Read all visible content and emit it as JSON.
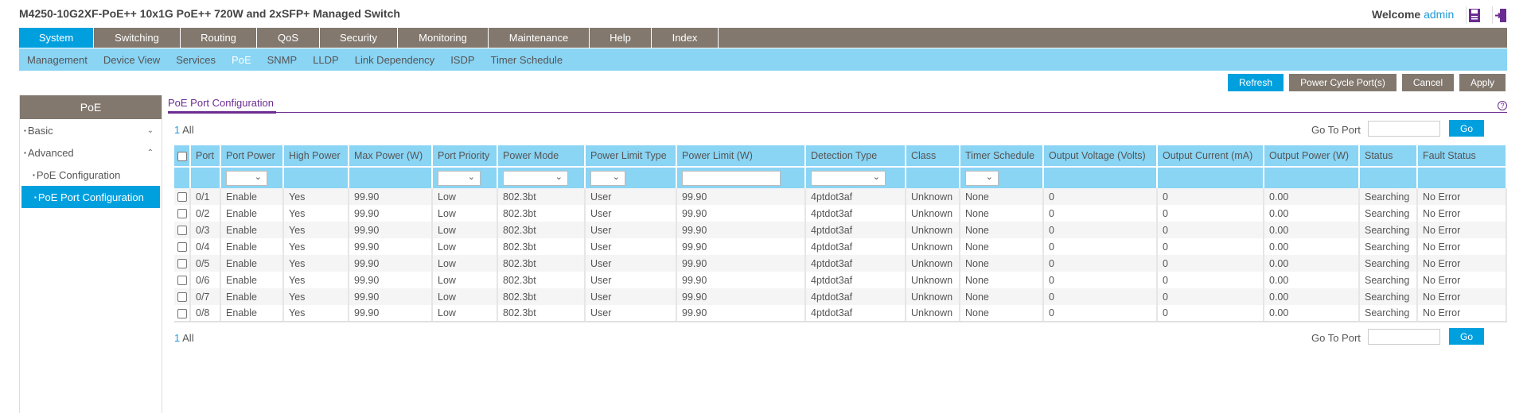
{
  "header": {
    "title": "M4250-10G2XF-PoE++ 10x1G PoE++ 720W and 2xSFP+ Managed Switch",
    "welcome": "Welcome",
    "user": "admin",
    "icons": [
      "save-icon",
      "logout-icon"
    ]
  },
  "nav": {
    "tabs": [
      "System",
      "Switching",
      "Routing",
      "QoS",
      "Security",
      "Monitoring",
      "Maintenance",
      "Help",
      "Index"
    ],
    "active": "System"
  },
  "subnav": {
    "items": [
      "Management",
      "Device View",
      "Services",
      "PoE",
      "SNMP",
      "LLDP",
      "Link Dependency",
      "ISDP",
      "Timer Schedule"
    ],
    "active": "PoE"
  },
  "actions": {
    "refresh": "Refresh",
    "power_cycle": "Power Cycle Port(s)",
    "cancel": "Cancel",
    "apply": "Apply"
  },
  "sidebar": {
    "title": "PoE",
    "items": [
      {
        "label": "Basic",
        "chevron": "chevron-down"
      },
      {
        "label": "Advanced",
        "chevron": "chevron-up"
      },
      {
        "label": "PoE Configuration"
      },
      {
        "label": "PoE Port Configuration",
        "selected": true
      }
    ]
  },
  "page": {
    "title": "PoE Port Configuration",
    "help": "?"
  },
  "pager": {
    "page": "1",
    "all": "All",
    "goto_label": "Go To Port",
    "goto_value": "",
    "go": "Go"
  },
  "colors": {
    "nav": "#82786e",
    "accent": "#00a0df",
    "subnav": "#8ad4f4",
    "purple": "#6b2c91"
  },
  "table": {
    "columns": [
      "",
      "Port",
      "Port Power",
      "High Power",
      "Max Power (W)",
      "Port Priority",
      "Power Mode",
      "Power Limit Type",
      "Power Limit (W)",
      "Detection Type",
      "Class",
      "Timer Schedule",
      "Output Voltage (Volts)",
      "Output Current (mA)",
      "Output Power (W)",
      "Status",
      "Fault Status"
    ],
    "rows": [
      [
        "0/1",
        "Enable",
        "Yes",
        "99.90",
        "Low",
        "802.3bt",
        "User",
        "99.90",
        "4ptdot3af",
        "Unknown",
        "None",
        "0",
        "0",
        "0.00",
        "Searching",
        "No Error"
      ],
      [
        "0/2",
        "Enable",
        "Yes",
        "99.90",
        "Low",
        "802.3bt",
        "User",
        "99.90",
        "4ptdot3af",
        "Unknown",
        "None",
        "0",
        "0",
        "0.00",
        "Searching",
        "No Error"
      ],
      [
        "0/3",
        "Enable",
        "Yes",
        "99.90",
        "Low",
        "802.3bt",
        "User",
        "99.90",
        "4ptdot3af",
        "Unknown",
        "None",
        "0",
        "0",
        "0.00",
        "Searching",
        "No Error"
      ],
      [
        "0/4",
        "Enable",
        "Yes",
        "99.90",
        "Low",
        "802.3bt",
        "User",
        "99.90",
        "4ptdot3af",
        "Unknown",
        "None",
        "0",
        "0",
        "0.00",
        "Searching",
        "No Error"
      ],
      [
        "0/5",
        "Enable",
        "Yes",
        "99.90",
        "Low",
        "802.3bt",
        "User",
        "99.90",
        "4ptdot3af",
        "Unknown",
        "None",
        "0",
        "0",
        "0.00",
        "Searching",
        "No Error"
      ],
      [
        "0/6",
        "Enable",
        "Yes",
        "99.90",
        "Low",
        "802.3bt",
        "User",
        "99.90",
        "4ptdot3af",
        "Unknown",
        "None",
        "0",
        "0",
        "0.00",
        "Searching",
        "No Error"
      ],
      [
        "0/7",
        "Enable",
        "Yes",
        "99.90",
        "Low",
        "802.3bt",
        "User",
        "99.90",
        "4ptdot3af",
        "Unknown",
        "None",
        "0",
        "0",
        "0.00",
        "Searching",
        "No Error"
      ],
      [
        "0/8",
        "Enable",
        "Yes",
        "99.90",
        "Low",
        "802.3bt",
        "User",
        "99.90",
        "4ptdot3af",
        "Unknown",
        "None",
        "0",
        "0",
        "0.00",
        "Searching",
        "No Error"
      ]
    ]
  }
}
